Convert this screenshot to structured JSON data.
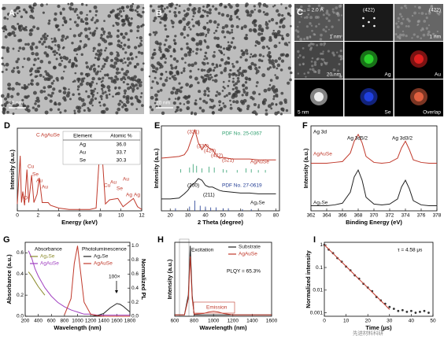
{
  "images": [
    {
      "panel": "A",
      "scale": "20 nm"
    },
    {
      "panel": "B",
      "scale": "20 nm"
    },
    {
      "panel": "C",
      "tiles": [
        {
          "texts": [
            "d₁₁₁ = 2.0 Å",
            "1 nm"
          ]
        },
        {
          "texts": [
            "(422)"
          ]
        },
        {
          "texts": [
            "(422)",
            "1 nm"
          ]
        },
        {
          "texts": [
            "20 nm"
          ]
        },
        {
          "texts": [
            "Ag"
          ]
        },
        {
          "texts": [
            "Au"
          ]
        },
        {
          "texts": [
            "5 nm"
          ]
        },
        {
          "texts": [
            "Se"
          ]
        },
        {
          "texts": [
            "Overlap"
          ]
        }
      ]
    }
  ],
  "watermark": "先进材料科研",
  "chart_data": [
    {
      "panel": "D",
      "type": "line",
      "xlabel": "Energy (keV)",
      "ylabel": "Intensity (a.u.)",
      "xlim": [
        0,
        12
      ],
      "xticks": [
        0,
        2,
        4,
        6,
        8,
        10,
        12
      ],
      "ylim": [
        0,
        60
      ],
      "x": [
        0,
        0.28,
        0.4,
        0.53,
        0.7,
        0.93,
        1.1,
        1.38,
        1.6,
        1.9,
        2.12,
        2.4,
        2.98,
        3.2,
        4,
        5,
        6,
        7,
        7.6,
        8.05,
        8.5,
        8.9,
        9.7,
        10.2,
        11.2,
        11.6,
        12
      ],
      "series": [
        {
          "name": "AgAuSe",
          "color": "#c0392b",
          "values": [
            5,
            40,
            6,
            14,
            4,
            30,
            6,
            26,
            6,
            12,
            24,
            6,
            6,
            4,
            2,
            1,
            1,
            1,
            2,
            56,
            5,
            8,
            9,
            3,
            9,
            3,
            1
          ]
        }
      ],
      "annotations": [
        "C",
        "O",
        "Cu",
        "Se",
        "Au",
        "Au",
        "Cu",
        "Cu",
        "Au",
        "Se",
        "Au",
        "Ag",
        "Ag"
      ],
      "table": {
        "header": [
          "Element",
          "Atomic %"
        ],
        "rows": [
          [
            "Ag",
            "36.0"
          ],
          [
            "Au",
            "33.7"
          ],
          [
            "Se",
            "30.3"
          ]
        ]
      }
    },
    {
      "panel": "E",
      "type": "line",
      "xlabel": "2 Theta (degree)",
      "ylabel": "Intensity (a.u.)",
      "xlim": [
        15,
        82
      ],
      "xticks": [
        20,
        30,
        40,
        50,
        60,
        70,
        80
      ],
      "ylim": [
        0,
        100
      ],
      "x": [
        15,
        20,
        25,
        28,
        30,
        32,
        34,
        36,
        38,
        40,
        42,
        44,
        46,
        48,
        50,
        55,
        60,
        65,
        70,
        75,
        80
      ],
      "series": [
        {
          "name": "AgAuSe",
          "color": "#c0392b",
          "values": [
            62,
            63,
            64,
            66,
            72,
            84,
            95,
            80,
            72,
            78,
            74,
            72,
            66,
            62,
            63,
            61,
            61,
            61,
            60,
            60,
            60
          ]
        },
        {
          "name": "Ag₂Se",
          "color": "#222222",
          "values": [
            14,
            14,
            15,
            20,
            24,
            30,
            33,
            38,
            36,
            30,
            28,
            28,
            26,
            24,
            23,
            22,
            21,
            21,
            20,
            20,
            20
          ]
        }
      ],
      "references": [
        {
          "name": "PDF No. 25-0367",
          "color": "#2e9e6e",
          "positions": [
            26,
            31,
            33,
            35,
            38,
            42,
            45,
            50,
            52,
            58,
            63,
            66,
            70,
            74
          ],
          "heights": [
            4,
            6,
            10,
            8,
            5,
            7,
            6,
            4,
            3,
            3,
            5,
            4,
            3,
            3
          ]
        },
        {
          "name": "PDF No. 27-0619",
          "color": "#1f3a93",
          "positions": [
            23,
            31,
            34,
            37,
            40,
            43,
            46,
            50,
            53,
            61,
            66
          ],
          "heights": [
            3,
            5,
            12,
            6,
            5,
            4,
            4,
            3,
            3,
            2,
            2
          ]
        }
      ],
      "annotations": [
        "(321)",
        "(330)",
        "(420)",
        "(422)",
        "(521)",
        "(200)",
        "(211)"
      ]
    },
    {
      "panel": "F",
      "type": "line",
      "xlabel": "Binding Energy (eV)",
      "ylabel": "Intensity (a.u.)",
      "xlim": [
        362,
        378
      ],
      "xticks": [
        362,
        364,
        366,
        368,
        370,
        372,
        374,
        376,
        378
      ],
      "ylim": [
        0,
        100
      ],
      "x": [
        362,
        363,
        364,
        365,
        366,
        367,
        367.5,
        368,
        368.5,
        369,
        370,
        371,
        372,
        373,
        373.5,
        374,
        374.5,
        375,
        376,
        377,
        378
      ],
      "series": [
        {
          "name": "AgAuSe",
          "color": "#c0392b",
          "values": [
            56,
            56,
            56,
            57,
            58,
            68,
            82,
            90,
            80,
            64,
            57,
            56,
            57,
            62,
            74,
            82,
            72,
            60,
            57,
            56,
            56
          ]
        },
        {
          "name": "Ag₂Se",
          "color": "#222222",
          "values": [
            6,
            6,
            6,
            7,
            9,
            22,
            40,
            48,
            36,
            16,
            8,
            7,
            8,
            14,
            28,
            36,
            26,
            12,
            7,
            6,
            6
          ]
        }
      ],
      "annotations": [
        "Ag 3d",
        "Ag 3d5/2",
        "Ag 3d3/2"
      ]
    },
    {
      "panel": "G",
      "type": "line",
      "xlabel": "Wavelength (nm)",
      "ylabel": "Absorbance (a.u.)",
      "y2label": "Normalized PL",
      "xlim": [
        200,
        1800
      ],
      "xticks": [
        200,
        400,
        600,
        800,
        1000,
        1200,
        1400,
        1600,
        1800
      ],
      "ylim": [
        0,
        0.7
      ],
      "yticks": [
        {
          "value": 0,
          "label": "0.0"
        },
        0.2,
        0.4,
        0.6
      ],
      "y2lim": [
        0,
        1.05
      ],
      "y2ticks": [
        {
          "value": 0,
          "label": "0.0"
        },
        0.2,
        0.4,
        0.6,
        0.8,
        {
          "value": 1,
          "label": "1.0"
        }
      ],
      "x": [
        250,
        300,
        350,
        400,
        500,
        600,
        700,
        800,
        900,
        950,
        1000,
        1050,
        1100,
        1200,
        1300,
        1400,
        1500,
        1600,
        1650,
        1700,
        1800
      ],
      "series": [
        {
          "name": "Ag₂Se",
          "color": "#8a8a2a",
          "values": [
            0.42,
            0.38,
            0.33,
            0.28,
            0.2,
            null,
            null,
            null,
            null,
            null,
            null,
            null,
            null,
            null,
            null,
            null,
            null,
            null,
            null,
            null,
            null
          ]
        },
        {
          "name": "AgAuSe",
          "color": "#a040c0",
          "values": [
            0.62,
            0.55,
            0.45,
            0.38,
            0.27,
            0.19,
            0.13,
            0.09,
            0.06,
            0.05,
            0.04,
            0.03,
            0.02,
            0.02,
            0.01,
            0.01,
            0.01,
            0.01,
            0.01,
            0.01,
            0.01
          ]
        },
        {
          "name": "Ag₂Se",
          "color": "#222222",
          "axis": "y2",
          "values": [
            null,
            null,
            null,
            null,
            null,
            null,
            null,
            null,
            null,
            null,
            null,
            null,
            0,
            0,
            0.01,
            0.04,
            0.12,
            0.18,
            0.17,
            0.14,
            0.06
          ]
        },
        {
          "name": "AgAuSe",
          "color": "#c0392b",
          "axis": "y2",
          "values": [
            null,
            null,
            null,
            null,
            null,
            null,
            null,
            0.02,
            0.25,
            0.75,
            1,
            0.6,
            0.2,
            0.03,
            0.01,
            0,
            0,
            0,
            0,
            0,
            0
          ]
        }
      ],
      "annotations": [
        "Absorbance",
        "Photoluminescence",
        "100×"
      ]
    },
    {
      "panel": "H",
      "type": "line",
      "xlabel": "Wavelength (nm)",
      "ylabel": "Intensity (a.u.)",
      "xlim": [
        600,
        1600
      ],
      "xticks": [
        600,
        800,
        1000,
        1200,
        1400,
        1600
      ],
      "ylim": [
        0,
        1.05
      ],
      "x": [
        600,
        700,
        740,
        760,
        780,
        800,
        900,
        950,
        1000,
        1050,
        1100,
        1200,
        1300,
        1400,
        1500,
        1600
      ],
      "series": [
        {
          "name": "Substrate",
          "color": "#222222",
          "values": [
            0.02,
            0.02,
            0.3,
            1,
            0.3,
            0.02,
            0.02,
            0.02,
            0.02,
            0.02,
            0.02,
            0.02,
            0.02,
            0.02,
            0.02,
            0.02
          ]
        },
        {
          "name": "AgAuSe",
          "color": "#c0392b",
          "values": [
            0.02,
            0.02,
            0.25,
            0.85,
            0.25,
            0.03,
            0.04,
            0.06,
            0.07,
            0.06,
            0.04,
            0.02,
            0.02,
            0.02,
            0.02,
            0.02
          ]
        }
      ],
      "annotations": [
        "Excitation",
        "PLQY = 65.3%",
        "Emission"
      ]
    },
    {
      "panel": "I",
      "type": "line",
      "xlabel": "Time (μs)",
      "ylabel": "Normalized intensity",
      "xlim": [
        0,
        50
      ],
      "xticks": [
        0,
        10,
        20,
        30,
        40,
        50
      ],
      "ylim": [
        0.0007,
        1.3
      ],
      "ylog": true,
      "yticks": [
        0.001,
        0.01,
        0.1,
        1
      ],
      "x": [
        0,
        2,
        4,
        6,
        8,
        10,
        12,
        14,
        16,
        18,
        20,
        22,
        24,
        26,
        28,
        30,
        32,
        34,
        36,
        38,
        40,
        42,
        44,
        46,
        48
      ],
      "series": [
        {
          "color": "#333333",
          "mode": "scatter",
          "values": [
            1,
            0.62,
            0.43,
            0.26,
            0.18,
            0.11,
            0.075,
            0.045,
            0.032,
            0.019,
            0.013,
            0.009,
            0.005,
            0.0035,
            0.0025,
            0.0018,
            0.0015,
            0.0012,
            0.0013,
            0.0011,
            0.0012,
            0.001,
            0.0011,
            0.0012,
            0.001
          ]
        },
        {
          "color": "#c0392b",
          "values": [
            1,
            0.646,
            0.418,
            0.27,
            0.174,
            0.113,
            0.073,
            0.047,
            0.03,
            0.0197,
            0.0127,
            0.0082,
            0.0053,
            0.0034,
            0.0022,
            0.0014,
            null,
            null,
            null,
            null,
            null,
            null,
            null,
            null,
            null
          ]
        }
      ],
      "annotations": [
        "τ = 4.58 μs"
      ]
    }
  ]
}
